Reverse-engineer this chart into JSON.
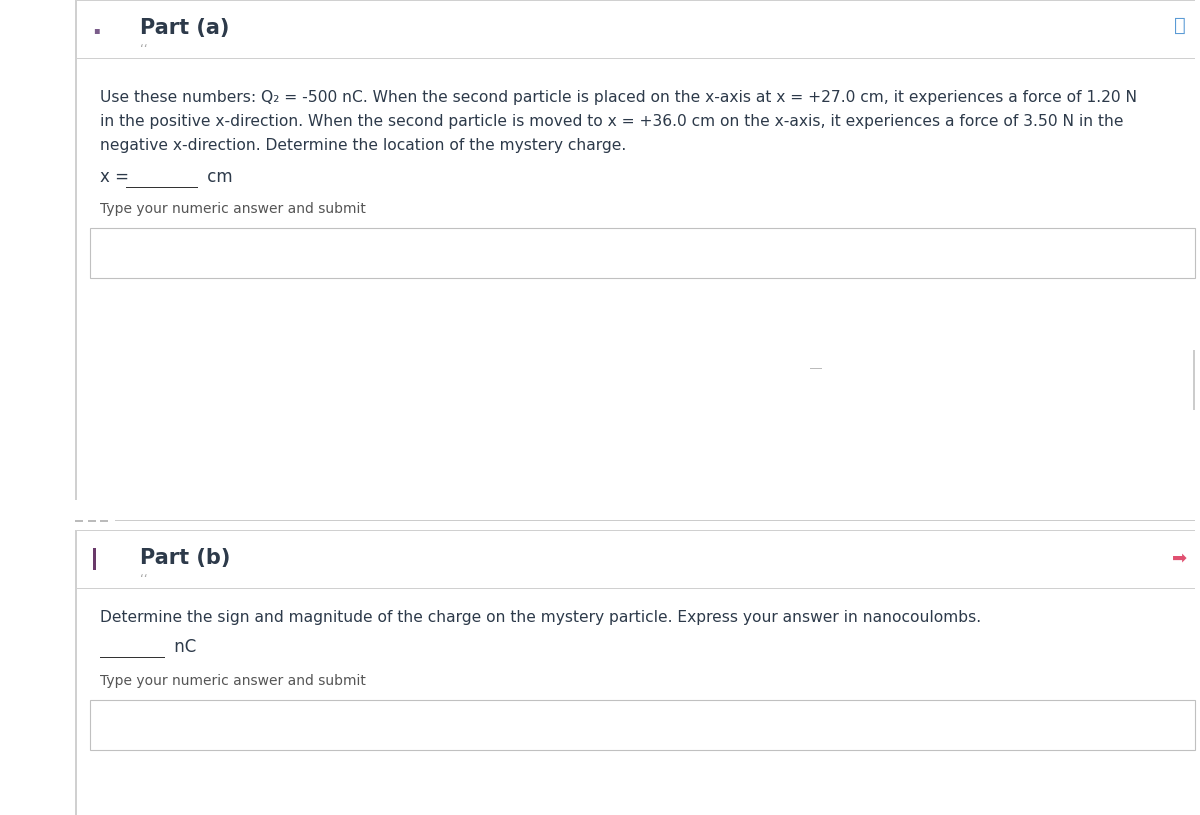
{
  "bg_color": "#ffffff",
  "panel_color": "#ffffff",
  "border_color": "#d0d0d0",
  "text_color": "#2d3a4a",
  "gray_text": "#555555",
  "light_border": "#e8e8e8",
  "part_a_title": "Part (a)",
  "part_a_dots": "’ ·",
  "part_a_body_line1": "Use these numbers: Q₂ = -500 nC. When the second particle is placed on the x-axis at x = +27.0 cm, it experiences a force of 1.20 N",
  "part_a_body_line2": "in the positive x-direction. When the second particle is moved to x = +36.0 cm on the x-axis, it experiences a force of 3.50 N in the",
  "part_a_body_line3": "negative x-direction. Determine the location of the mystery charge.",
  "part_a_answer_label": "x = ",
  "part_a_answer_unit": " cm",
  "part_a_submit_text": "Type your numeric answer and submit",
  "part_b_title": "Part (b)",
  "part_b_dots": "’ ·",
  "part_b_body": "Determine the sign and magnitude of the charge on the mystery particle. Express your answer in nanocoulombs.",
  "part_b_answer_unit": " nC",
  "part_b_submit_text": "Type your numeric answer and submit",
  "accent_color": "#5b7fa6",
  "sep_color": "#cccccc",
  "input_border": "#c0c0c0",
  "plus_color": "#5b9bd5",
  "star_color": "#e05070"
}
